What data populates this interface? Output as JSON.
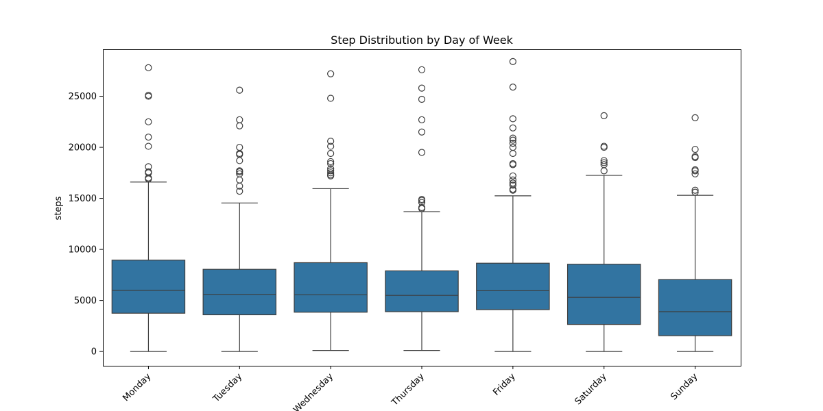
{
  "chart_data": {
    "type": "box",
    "title": "Step Distribution by Day of Week",
    "xlabel": "",
    "ylabel": "steps",
    "ylim": [
      -1400,
      29600
    ],
    "yticks": [
      0,
      5000,
      10000,
      15000,
      20000,
      25000
    ],
    "grid": false,
    "color": "#3274a1",
    "categories": [
      "Monday",
      "Tuesday",
      "Wednesday",
      "Thursday",
      "Friday",
      "Saturday",
      "Sunday"
    ],
    "boxes": [
      {
        "category": "Monday",
        "whisker_low": 0,
        "q1": 3750,
        "median": 6000,
        "q3": 8950,
        "whisker_high": 16600,
        "outliers": [
          16900,
          17000,
          17500,
          17600,
          18100,
          20100,
          21000,
          22500,
          25000,
          25100,
          27800
        ]
      },
      {
        "category": "Tuesday",
        "whisker_low": 0,
        "q1": 3600,
        "median": 5600,
        "q3": 8050,
        "whisker_high": 14550,
        "outliers": [
          15700,
          16200,
          16800,
          17400,
          17600,
          17700,
          18700,
          19300,
          19400,
          20000,
          22100,
          22700,
          25600
        ]
      },
      {
        "category": "Wednesday",
        "whisker_low": 100,
        "q1": 3850,
        "median": 5550,
        "q3": 8700,
        "whisker_high": 15950,
        "outliers": [
          17200,
          17300,
          17500,
          17700,
          17900,
          18400,
          18600,
          19400,
          20100,
          20600,
          24800,
          27200
        ]
      },
      {
        "category": "Thursday",
        "whisker_low": 100,
        "q1": 3900,
        "median": 5500,
        "q3": 7900,
        "whisker_high": 13700,
        "outliers": [
          14000,
          14100,
          14600,
          14800,
          14900,
          19500,
          21500,
          22700,
          24700,
          25800,
          27600
        ]
      },
      {
        "category": "Friday",
        "whisker_low": 0,
        "q1": 4100,
        "median": 5950,
        "q3": 8650,
        "whisker_high": 15250,
        "outliers": [
          15800,
          15900,
          16300,
          16500,
          16800,
          17200,
          18300,
          18400,
          19400,
          20000,
          20400,
          20700,
          20900,
          21900,
          22800,
          25900,
          28400
        ]
      },
      {
        "category": "Saturday",
        "whisker_low": 0,
        "q1": 2650,
        "median": 5300,
        "q3": 8550,
        "whisker_high": 17250,
        "outliers": [
          17700,
          18300,
          18500,
          18700,
          20000,
          20100,
          23100
        ]
      },
      {
        "category": "Sunday",
        "whisker_low": 0,
        "q1": 1550,
        "median": 3900,
        "q3": 7050,
        "whisker_high": 15300,
        "outliers": [
          15600,
          15800,
          17400,
          17700,
          17800,
          19000,
          19100,
          19800,
          22900
        ]
      }
    ]
  }
}
